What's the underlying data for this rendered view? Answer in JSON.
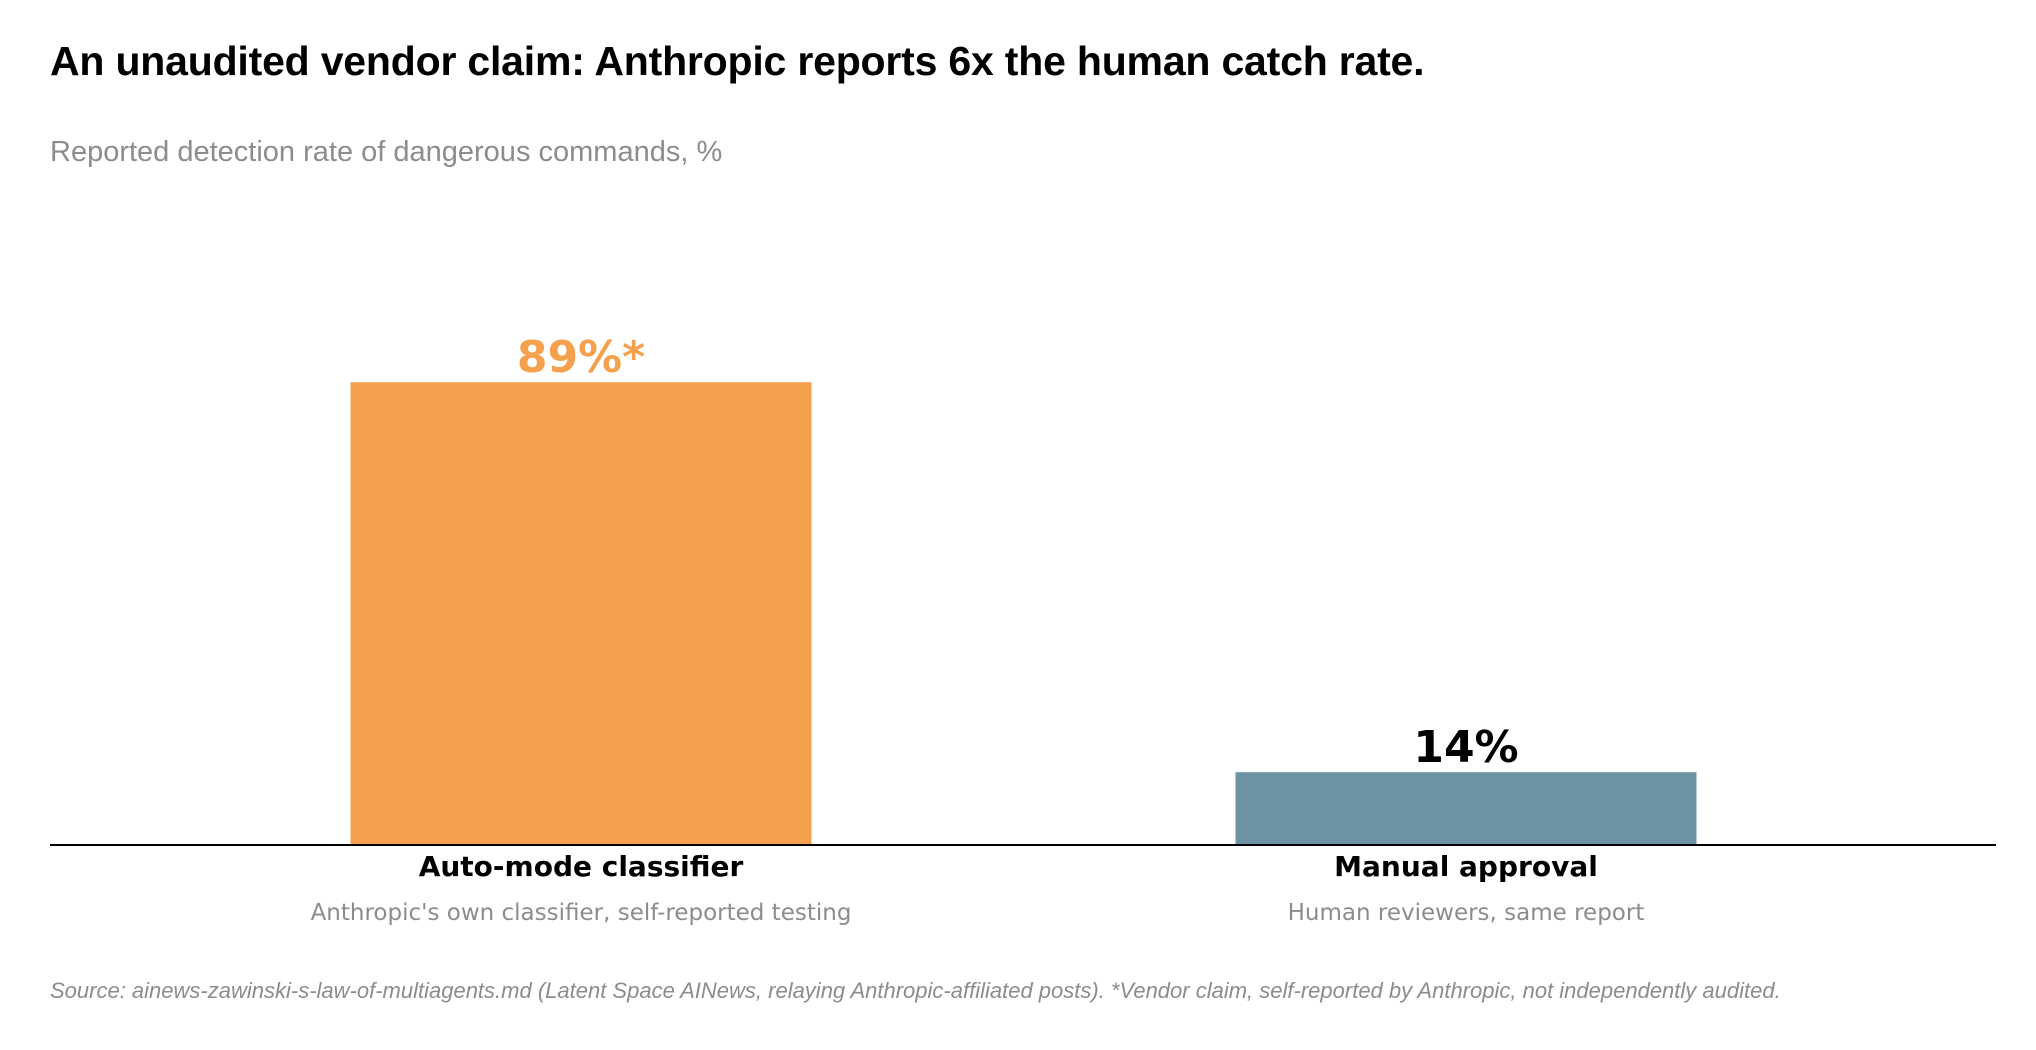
{
  "title": "An unaudited vendor claim: Anthropic reports 6x the human catch rate.",
  "subtitle": "Reported detection rate of dangerous commands, %",
  "footnote": "Source: ainews-zawinski-s-law-of-multiagents.md (Latent Space AINews, relaying Anthropic-affiliated posts). *Vendor claim, self-reported by Anthropic, not independently audited.",
  "chart_data": {
    "type": "bar",
    "categories": [
      "Auto-mode classifier",
      "Manual approval"
    ],
    "category_descriptions": [
      "Anthropic's own classifier, self-reported testing",
      "Human reviewers, same report"
    ],
    "values": [
      89,
      14
    ],
    "value_labels": [
      "89%*",
      "14%"
    ],
    "colors": [
      "#F4A04D",
      "#6C93A4"
    ],
    "value_label_colors": [
      "#F4A04D",
      "#000000"
    ],
    "ylim": [
      0,
      100
    ],
    "grid": false,
    "legend": "none"
  }
}
